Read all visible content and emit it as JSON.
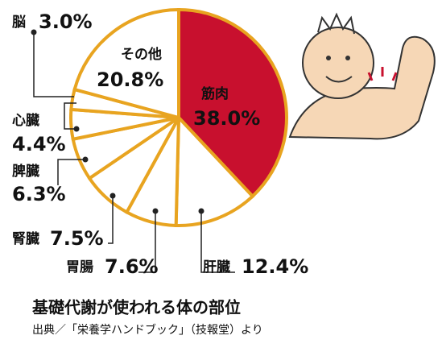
{
  "chart_data": {
    "type": "pie",
    "title": "基礎代謝が使われる体の部位",
    "subtitle": "出典／「栄養学ハンドブック」（技報堂）より",
    "categories": [
      "筋肉",
      "肝臓",
      "胃腸",
      "腎臓",
      "脾臓",
      "心臓",
      "脳",
      "その他"
    ],
    "values": [
      38.0,
      12.4,
      7.6,
      7.5,
      6.3,
      4.4,
      3.0,
      20.8
    ],
    "value_labels": [
      "38.0%",
      "12.4%",
      "7.6%",
      "7.5%",
      "6.3%",
      "4.4%",
      "3.0%",
      "20.8%"
    ],
    "colors": [
      "#c8102e",
      "#ffffff",
      "#ffffff",
      "#ffffff",
      "#ffffff",
      "#ffffff",
      "#ffffff",
      "#ffffff"
    ],
    "edge_color": "#e8a420"
  }
}
